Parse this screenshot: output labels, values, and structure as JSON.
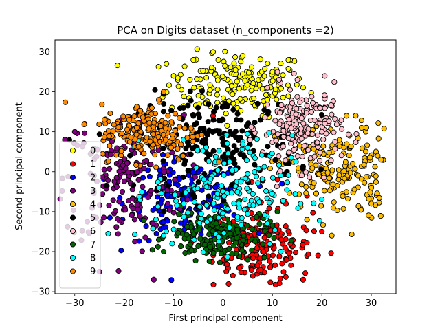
{
  "chart_data": {
    "type": "scatter",
    "title": "PCA on Digits dataset (n_components =2)",
    "xlabel": "First principal component",
    "ylabel": "Second principal component",
    "xlim": [
      -34,
      35
    ],
    "ylim": [
      -30.5,
      33
    ],
    "xticks": [
      -30,
      -20,
      -10,
      0,
      10,
      20,
      30
    ],
    "yticks": [
      -30,
      -20,
      -10,
      0,
      10,
      20,
      30
    ],
    "grid": false,
    "legend_position": "center-left",
    "marker_edge_color": "#000000",
    "series": [
      {
        "name": "0",
        "color": "#ffff00",
        "cx": 3,
        "cy": 22,
        "sx": 7,
        "sy": 4,
        "n": 178,
        "extra": [
          [
            -6,
            28
          ],
          [
            -2,
            30
          ],
          [
            4,
            29
          ],
          [
            10,
            25
          ],
          [
            -10,
            24
          ],
          [
            9,
            18
          ]
        ]
      },
      {
        "name": "1",
        "color": "#ff0000",
        "cx": 8,
        "cy": -19,
        "sx": 5,
        "sy": 5,
        "n": 182,
        "extra": [
          [
            -2,
            14
          ],
          [
            0,
            13
          ],
          [
            11,
            -2
          ],
          [
            17,
            -6
          ],
          [
            20,
            -15
          ],
          [
            2,
            -26
          ]
        ]
      },
      {
        "name": "2",
        "color": "#0000ff",
        "cx": -7,
        "cy": -7,
        "sx": 6,
        "sy": 5,
        "n": 177,
        "extra": [
          [
            -14,
            -14
          ],
          [
            -3,
            3
          ],
          [
            -12,
            2
          ],
          [
            -17,
            -10
          ]
        ]
      },
      {
        "name": "3",
        "color": "#800080",
        "cx": -20,
        "cy": -2,
        "sx": 6,
        "sy": 8,
        "n": 183,
        "extra": [
          [
            -30,
            10
          ],
          [
            -28,
            12
          ],
          [
            -25,
            -25
          ],
          [
            -14,
            -27
          ],
          [
            -32,
            8
          ]
        ]
      },
      {
        "name": "4",
        "color": "#ffbf00",
        "cx": 23,
        "cy": 0,
        "sx": 6,
        "sy": 6,
        "n": 181,
        "extra": [
          [
            29,
            11
          ],
          [
            32,
            3
          ],
          [
            30,
            -4
          ],
          [
            17,
            -12
          ],
          [
            22,
            -16
          ],
          [
            25,
            14
          ],
          [
            30,
            -8
          ]
        ]
      },
      {
        "name": "5",
        "color": "#000000",
        "cx": -1,
        "cy": 7,
        "sx": 8,
        "sy": 6,
        "n": 182,
        "extra": [
          [
            -12,
            17
          ],
          [
            -8,
            16
          ],
          [
            -6,
            14
          ],
          [
            6,
            11
          ]
        ]
      },
      {
        "name": "6",
        "color": "#ffc0cb",
        "cx": 16,
        "cy": 11,
        "sx": 4,
        "sy": 5,
        "n": 181,
        "extra": [
          [
            11,
            25
          ],
          [
            20,
            10
          ],
          [
            9,
            21
          ]
        ]
      },
      {
        "name": "7",
        "color": "#006400",
        "cx": -1,
        "cy": -16,
        "sx": 5,
        "sy": 3,
        "n": 179,
        "extra": [
          [
            -13,
            -17
          ],
          [
            5,
            -22
          ],
          [
            11,
            -10
          ],
          [
            -12,
            -20
          ],
          [
            7,
            -7
          ]
        ]
      },
      {
        "name": "8",
        "color": "#00ffff",
        "cx": 0,
        "cy": -5,
        "sx": 7,
        "sy": 7,
        "n": 174,
        "extra": [
          [
            -13,
            -4
          ],
          [
            -8,
            8
          ],
          [
            9,
            -13
          ],
          [
            -12,
            -16
          ],
          [
            5,
            6
          ]
        ]
      },
      {
        "name": "9",
        "color": "#ff8c00",
        "cx": -15,
        "cy": 10,
        "sx": 5,
        "sy": 3.5,
        "n": 180,
        "extra": [
          [
            -24,
            13
          ],
          [
            -19,
            13
          ],
          [
            -13,
            18
          ],
          [
            -12,
            20
          ],
          [
            -9,
            3
          ]
        ]
      }
    ]
  }
}
